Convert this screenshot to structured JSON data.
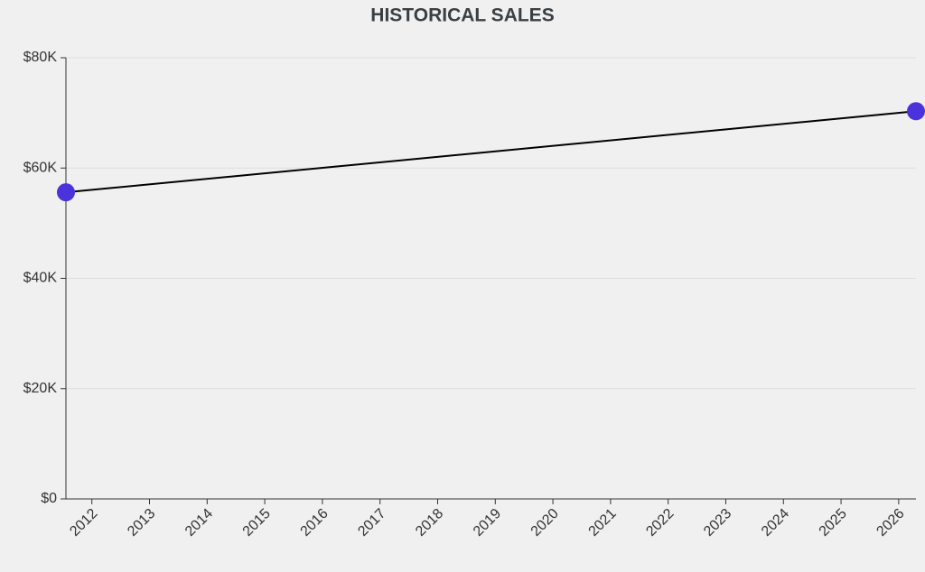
{
  "chart_data": {
    "type": "line",
    "title": "HISTORICAL SALES",
    "x": [
      2011.55,
      2026.3
    ],
    "series": [
      {
        "name": "Sales",
        "color": "#4b33db",
        "line_color": "#000000",
        "values": [
          55600,
          70300
        ]
      }
    ],
    "xlim": [
      2011.55,
      2026.3
    ],
    "xticks": [
      2012,
      2013,
      2014,
      2015,
      2016,
      2017,
      2018,
      2019,
      2020,
      2021,
      2022,
      2023,
      2024,
      2025,
      2026
    ],
    "ylim": [
      0,
      80000
    ],
    "yticks": [
      {
        "value": 0,
        "label": "$0"
      },
      {
        "value": 20000,
        "label": "$20K"
      },
      {
        "value": 40000,
        "label": "$40K"
      },
      {
        "value": 60000,
        "label": "$60K"
      },
      {
        "value": 80000,
        "label": "$80K"
      }
    ],
    "grid": true
  }
}
